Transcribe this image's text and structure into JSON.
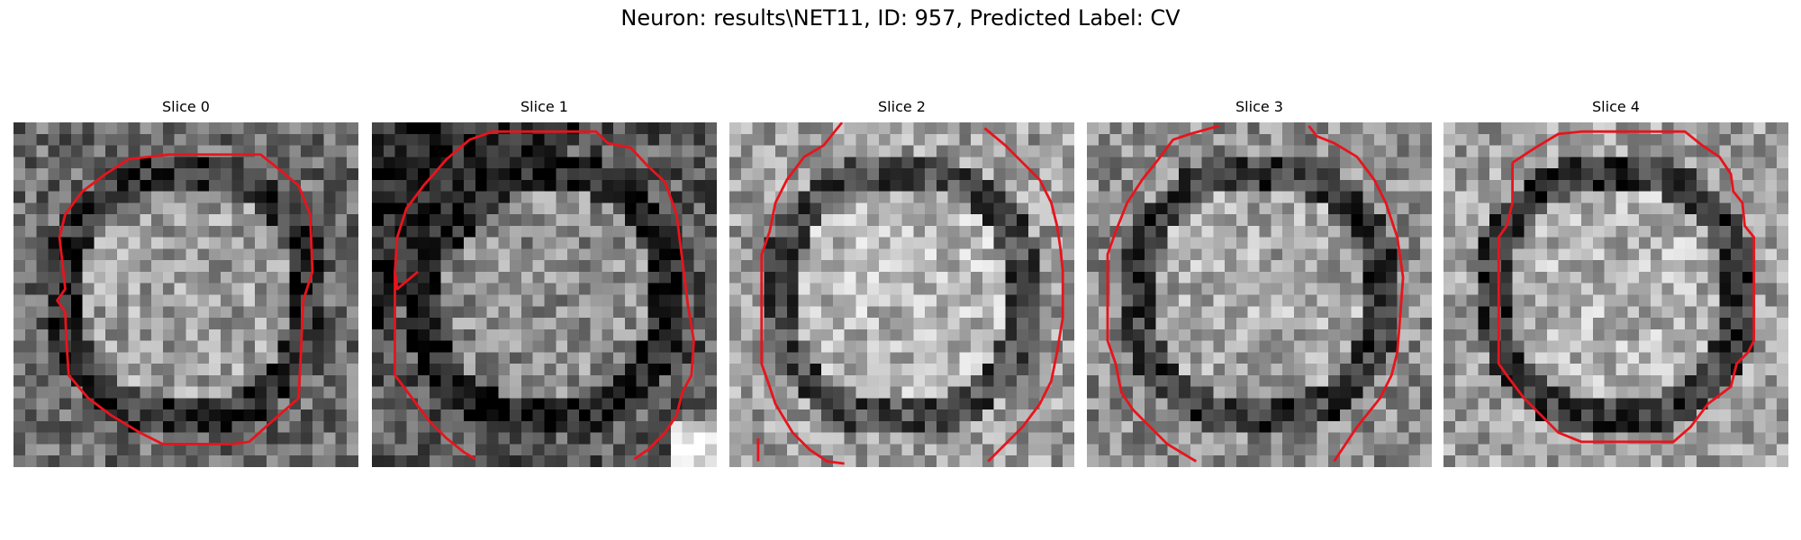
{
  "figure": {
    "title": "Neuron: results\\NET11, ID: 957, Predicted Label: CV"
  },
  "panels": [
    {
      "title": "Slice 0",
      "seed": 11,
      "darkRing": 0.18,
      "bg": 0.42,
      "inner": 0.62
    },
    {
      "title": "Slice 1",
      "seed": 23,
      "darkRing": 0.1,
      "bg": 0.35,
      "inner": 0.55
    },
    {
      "title": "Slice 2",
      "seed": 37,
      "darkRing": 0.28,
      "bg": 0.62,
      "inner": 0.72
    },
    {
      "title": "Slice 3",
      "seed": 51,
      "darkRing": 0.22,
      "bg": 0.55,
      "inner": 0.66
    },
    {
      "title": "Slice 4",
      "seed": 67,
      "darkRing": 0.2,
      "bg": 0.62,
      "inner": 0.7
    }
  ],
  "colors": {
    "contour": "#e8141c"
  },
  "image": {
    "grid": 30
  }
}
